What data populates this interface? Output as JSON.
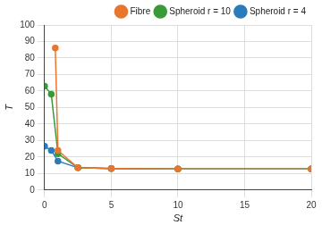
{
  "chart_data": {
    "type": "line",
    "x_label": "St",
    "y_label": "T",
    "series": [
      {
        "name": "Fibre",
        "color": "#e8762d",
        "marker": "circle",
        "x": [
          0.8,
          1,
          2.5,
          5,
          10,
          20
        ],
        "values": [
          86,
          24,
          13.5,
          13,
          12.8,
          12.8
        ]
      },
      {
        "name": "Spheroid r = 10",
        "color": "#3a9a3a",
        "marker": "circle",
        "x": [
          0,
          0.5,
          1,
          2.5,
          5,
          10,
          20
        ],
        "values": [
          63,
          58,
          22,
          13.5,
          13,
          12.8,
          12.8
        ]
      },
      {
        "name": "Spheroid r = 4",
        "color": "#2b7bba",
        "marker": "circle",
        "x": [
          0,
          0.5,
          1,
          2.5,
          5,
          10,
          20
        ],
        "values": [
          26.5,
          24,
          17.5,
          13.5,
          13,
          12.8,
          12.8
        ]
      }
    ],
    "xlim": [
      0,
      20
    ],
    "xticks": [
      0,
      5,
      10,
      15,
      20
    ],
    "ylim": [
      0,
      100
    ],
    "yticks": [
      0,
      10,
      20,
      30,
      40,
      50,
      60,
      70,
      80,
      90,
      100
    ],
    "grid": true,
    "legend": "top right"
  }
}
